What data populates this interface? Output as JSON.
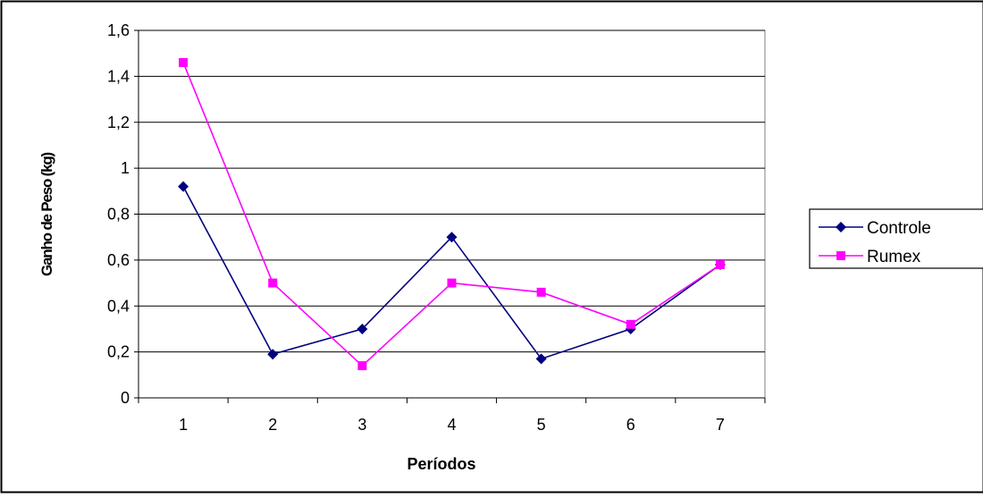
{
  "chart_data": {
    "type": "line",
    "title": "",
    "xlabel": "Períodos",
    "ylabel": "Ganho de Peso (kg)",
    "categories": [
      "1",
      "2",
      "3",
      "4",
      "5",
      "6",
      "7"
    ],
    "ylim": [
      0,
      1.6
    ],
    "yticks": [
      "0",
      "0,2",
      "0,4",
      "0,6",
      "0,8",
      "1",
      "1,2",
      "1,4",
      "1,6"
    ],
    "grid": true,
    "legend_position": "right",
    "series": [
      {
        "name": "Controle",
        "color": "#000080",
        "marker": "diamond",
        "values": [
          0.92,
          0.19,
          0.3,
          0.7,
          0.17,
          0.3,
          0.58
        ]
      },
      {
        "name": "Rumex",
        "color": "#ff00ff",
        "marker": "square",
        "values": [
          1.46,
          0.5,
          0.14,
          0.5,
          0.46,
          0.32,
          0.58
        ]
      }
    ]
  }
}
